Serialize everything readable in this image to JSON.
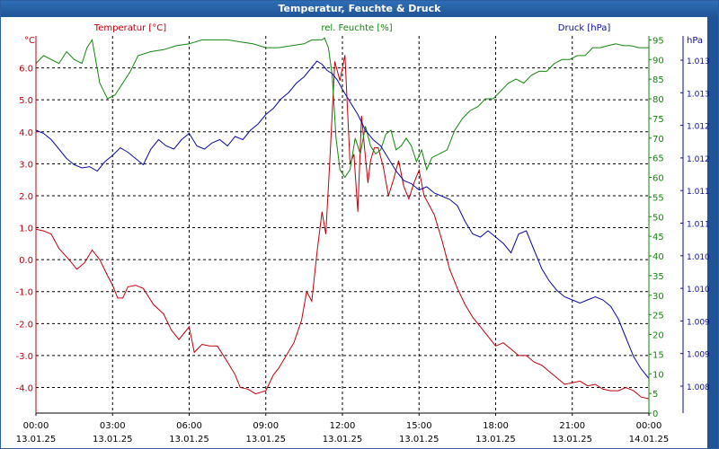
{
  "window": {
    "title": "Temperatur, Feuchte & Druck"
  },
  "colors": {
    "temperature": "#c0000c",
    "humidity": "#12860f",
    "pressure": "#0a0aa0",
    "grid": "#000000",
    "titlebar": "#1f5597"
  },
  "chart_data": {
    "type": "line",
    "title": "Temperatur, Feuchte & Druck",
    "x_unit": "hours since 13.01.25 00:00",
    "x_range": [
      0,
      24
    ],
    "x_ticks": [
      {
        "time": "00:00",
        "date": "13.01.25"
      },
      {
        "time": "03:00",
        "date": "13.01.25"
      },
      {
        "time": "06:00",
        "date": "13.01.25"
      },
      {
        "time": "09:00",
        "date": "13.01.25"
      },
      {
        "time": "12:00",
        "date": "13.01.25"
      },
      {
        "time": "15:00",
        "date": "13.01.25"
      },
      {
        "time": "18:00",
        "date": "13.01.25"
      },
      {
        "time": "21:00",
        "date": "13.01.25"
      },
      {
        "time": "00:00",
        "date": "14.01.25"
      }
    ],
    "legend": [
      "Temperatur [°C]",
      "rel. Feuchte [%]",
      "Druck [hPa]"
    ],
    "axes": {
      "temperature": {
        "unit": "°C",
        "range": [
          -4.8,
          7.0
        ],
        "ticks": [
          "6.0",
          "5.0",
          "4.0",
          "3.0",
          "2.0",
          "1.0",
          "0.0",
          "-1.0",
          "-2.0",
          "-3.0",
          "-4.0"
        ],
        "tick_values": [
          6,
          5,
          4,
          3,
          2,
          1,
          0,
          -1,
          -2,
          -3,
          -4
        ]
      },
      "humidity": {
        "unit": "%",
        "range": [
          0,
          96
        ],
        "ticks": [
          "95",
          "90",
          "85",
          "80",
          "75",
          "70",
          "65",
          "60",
          "55",
          "50",
          "45",
          "40",
          "35",
          "30",
          "25",
          "20",
          "15",
          "10",
          "5",
          "0"
        ],
        "tick_values": [
          95,
          90,
          85,
          80,
          75,
          70,
          65,
          60,
          55,
          50,
          45,
          40,
          35,
          30,
          25,
          20,
          15,
          10,
          5,
          0
        ]
      },
      "pressure": {
        "unit": "hPa",
        "range": [
          1007.5,
          1013.5
        ],
        "ticks": [
          "1.013",
          "1.013",
          "1.012",
          "1.012",
          "1.011",
          "1.011",
          "1.010",
          "1.010",
          "1.009",
          "1.009",
          "1.008"
        ]
      }
    },
    "series": [
      {
        "name": "Temperatur [°C]",
        "axis": "temperature",
        "x": [
          0,
          0.3,
          0.6,
          0.9,
          1.3,
          1.6,
          1.9,
          2.2,
          2.5,
          2.8,
          3.0,
          3.2,
          3.4,
          3.6,
          3.9,
          4.2,
          4.6,
          5.0,
          5.3,
          5.6,
          5.8,
          6.0,
          6.2,
          6.5,
          6.8,
          7.1,
          7.5,
          7.8,
          8.0,
          8.3,
          8.6,
          9.0,
          9.3,
          9.5,
          9.8,
          10.1,
          10.4,
          10.6,
          10.8,
          11.0,
          11.2,
          11.35,
          11.5,
          11.7,
          11.9,
          12.1,
          12.3,
          12.45,
          12.6,
          12.75,
          12.9,
          13.0,
          13.1,
          13.25,
          13.4,
          13.6,
          13.8,
          14.0,
          14.2,
          14.4,
          14.6,
          14.8,
          15.0,
          15.2,
          15.4,
          15.6,
          15.9,
          16.2,
          16.5,
          16.8,
          17.1,
          17.4,
          17.7,
          18.0,
          18.3,
          18.6,
          18.9,
          19.2,
          19.5,
          19.8,
          20.1,
          20.4,
          20.7,
          21.0,
          21.3,
          21.6,
          21.9,
          22.2,
          22.5,
          22.8,
          23.1,
          23.4,
          23.7,
          24.0
        ],
        "values": [
          0.95,
          0.9,
          0.8,
          0.35,
          0.0,
          -0.3,
          -0.1,
          0.3,
          0.0,
          -0.5,
          -0.8,
          -1.2,
          -1.2,
          -0.85,
          -0.8,
          -0.9,
          -1.4,
          -1.7,
          -2.2,
          -2.5,
          -2.3,
          -2.1,
          -2.9,
          -2.65,
          -2.7,
          -2.7,
          -3.2,
          -3.6,
          -4.0,
          -4.05,
          -4.2,
          -4.1,
          -3.6,
          -3.4,
          -3.0,
          -2.6,
          -1.9,
          -1.0,
          -1.3,
          0.2,
          1.5,
          0.8,
          3.0,
          6.2,
          5.6,
          6.4,
          3.0,
          3.3,
          1.5,
          4.5,
          3.2,
          2.4,
          3.1,
          3.5,
          3.5,
          2.9,
          2.0,
          2.5,
          3.1,
          2.3,
          1.9,
          2.4,
          2.8,
          2.0,
          1.7,
          1.4,
          0.6,
          -0.3,
          -0.9,
          -1.4,
          -1.8,
          -2.1,
          -2.4,
          -2.7,
          -2.6,
          -2.8,
          -3.0,
          -3.0,
          -3.2,
          -3.3,
          -3.5,
          -3.7,
          -3.9,
          -3.85,
          -3.8,
          -3.95,
          -3.9,
          -4.05,
          -4.1,
          -4.1,
          -4.0,
          -4.1,
          -4.3,
          -4.35
        ]
      },
      {
        "name": "rel. Feuchte [%]",
        "axis": "humidity",
        "x": [
          0,
          0.3,
          0.6,
          0.9,
          1.2,
          1.5,
          1.8,
          2.0,
          2.2,
          2.5,
          2.8,
          3.1,
          3.4,
          3.7,
          4.0,
          4.5,
          5.0,
          5.5,
          6.0,
          6.5,
          7.0,
          7.5,
          8.0,
          8.5,
          9.0,
          9.5,
          10.0,
          10.5,
          10.8,
          11.0,
          11.2,
          11.3,
          11.45,
          11.6,
          11.75,
          11.9,
          12.1,
          12.3,
          12.5,
          12.7,
          12.9,
          13.1,
          13.3,
          13.5,
          13.7,
          13.9,
          14.1,
          14.3,
          14.5,
          14.7,
          14.9,
          15.1,
          15.3,
          15.5,
          15.8,
          16.1,
          16.4,
          16.7,
          17.0,
          17.3,
          17.6,
          17.9,
          18.2,
          18.5,
          18.8,
          19.1,
          19.4,
          19.7,
          20.0,
          20.3,
          20.6,
          20.9,
          21.2,
          21.5,
          21.8,
          22.1,
          22.4,
          22.7,
          23.0,
          23.3,
          23.6,
          23.9,
          24.0
        ],
        "values": [
          89,
          91,
          90,
          89,
          92,
          90,
          89,
          93,
          95,
          84,
          80,
          81,
          84,
          87,
          91,
          92,
          92.5,
          93.5,
          94,
          95,
          95,
          95,
          94.5,
          94,
          93,
          93,
          93.5,
          94,
          95,
          95,
          95,
          95.5,
          93,
          86,
          70,
          62,
          60,
          62,
          70,
          66,
          73,
          68,
          66,
          67,
          71,
          72,
          67,
          68,
          70,
          68,
          64,
          67,
          62,
          65,
          66,
          67,
          72,
          75,
          77,
          78,
          80,
          80,
          82,
          84,
          85,
          84,
          86,
          87,
          87,
          89,
          90,
          90,
          91,
          91,
          93,
          93,
          93.5,
          94,
          93.5,
          93.5,
          93,
          93,
          93
        ]
      },
      {
        "name": "Druck [hPa]",
        "axis": "pressure",
        "x": [
          0,
          0.3,
          0.6,
          0.9,
          1.2,
          1.5,
          1.8,
          2.1,
          2.4,
          2.7,
          3.0,
          3.3,
          3.6,
          3.9,
          4.2,
          4.5,
          4.8,
          5.1,
          5.4,
          5.7,
          6.0,
          6.3,
          6.6,
          6.9,
          7.2,
          7.5,
          7.8,
          8.1,
          8.4,
          8.7,
          9.0,
          9.3,
          9.6,
          9.9,
          10.2,
          10.5,
          10.8,
          11.0,
          11.2,
          11.4,
          11.6,
          11.8,
          12.0,
          12.3,
          12.6,
          12.9,
          13.2,
          13.5,
          13.8,
          14.1,
          14.4,
          14.7,
          15.0,
          15.3,
          15.6,
          15.9,
          16.2,
          16.5,
          16.8,
          17.1,
          17.4,
          17.7,
          18.0,
          18.3,
          18.6,
          18.9,
          19.2,
          19.5,
          19.8,
          20.1,
          20.4,
          20.7,
          21.0,
          21.3,
          21.6,
          21.9,
          22.2,
          22.5,
          22.8,
          23.1,
          23.4,
          23.7,
          24.0
        ],
        "values": [
          1012.0,
          1011.95,
          1011.85,
          1011.7,
          1011.55,
          1011.45,
          1011.4,
          1011.42,
          1011.35,
          1011.5,
          1011.6,
          1011.72,
          1011.65,
          1011.55,
          1011.45,
          1011.7,
          1011.85,
          1011.75,
          1011.7,
          1011.85,
          1011.95,
          1011.75,
          1011.7,
          1011.8,
          1011.85,
          1011.75,
          1011.9,
          1011.85,
          1012.0,
          1012.1,
          1012.25,
          1012.35,
          1012.5,
          1012.6,
          1012.75,
          1012.85,
          1013.0,
          1013.1,
          1013.05,
          1012.95,
          1012.9,
          1012.8,
          1012.65,
          1012.45,
          1012.25,
          1012.0,
          1011.85,
          1011.75,
          1011.55,
          1011.35,
          1011.2,
          1011.15,
          1011.05,
          1011.1,
          1011.0,
          1010.95,
          1010.9,
          1010.8,
          1010.55,
          1010.35,
          1010.3,
          1010.4,
          1010.3,
          1010.2,
          1010.05,
          1010.35,
          1010.4,
          1010.1,
          1009.8,
          1009.6,
          1009.45,
          1009.35,
          1009.3,
          1009.25,
          1009.3,
          1009.35,
          1009.3,
          1009.2,
          1009.0,
          1008.7,
          1008.4,
          1008.2,
          1008.05
        ]
      }
    ]
  }
}
